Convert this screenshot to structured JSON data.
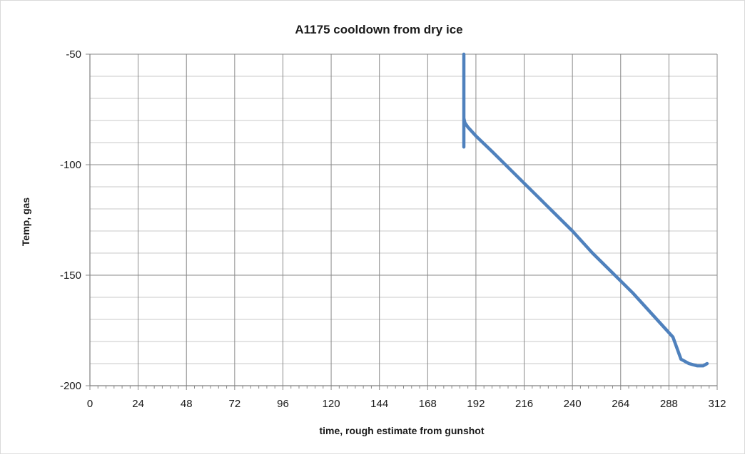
{
  "chart_data": {
    "type": "line",
    "title": "A1175 cooldown from dry ice",
    "xlabel": "time, rough estimate from gunshot",
    "ylabel": "Temp, gas",
    "xlim": [
      0,
      312
    ],
    "ylim": [
      -200,
      -50
    ],
    "x_ticks": [
      0,
      24,
      48,
      72,
      96,
      120,
      144,
      168,
      192,
      216,
      240,
      264,
      288,
      312
    ],
    "y_ticks": [
      -50,
      -100,
      -150,
      -200
    ],
    "y_minor_step": 10,
    "x_minor_step": 4,
    "grid": true,
    "legend": "none",
    "line_color": "#4f81bd",
    "series": [
      {
        "x": [
          186,
          186,
          186,
          186.5,
          188,
          192,
          200,
          210,
          220,
          230,
          240,
          250,
          260,
          270,
          280,
          290,
          294,
          298,
          302,
          305,
          307
        ],
        "y": [
          -50,
          -92,
          -79,
          -81,
          -83,
          -87,
          -94,
          -103,
          -112,
          -121,
          -130,
          -140,
          -149,
          -158,
          -168,
          -178,
          -188,
          -190,
          -191,
          -191,
          -190
        ]
      }
    ]
  }
}
